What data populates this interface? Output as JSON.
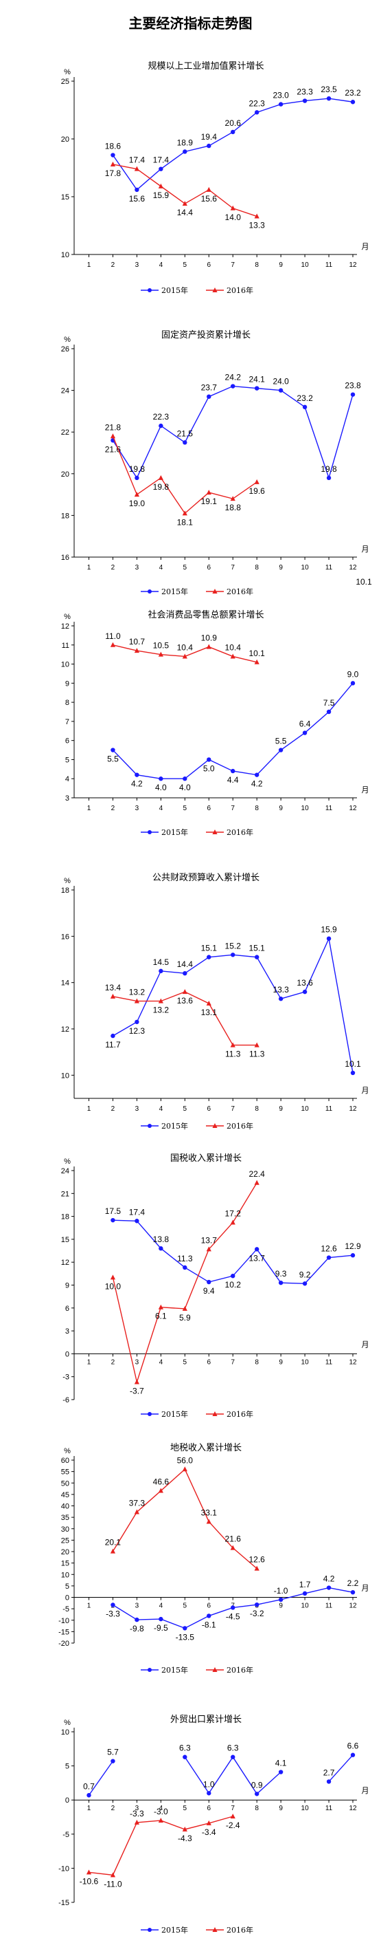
{
  "page": {
    "title": "主要经济指标走势图"
  },
  "legend": {
    "s2015": "2015年",
    "s2016": "2016年"
  },
  "chart_data": [
    {
      "type": "line",
      "title": "规模以上工业增加值累计增长",
      "yunit": "%",
      "xunit": "月",
      "ylim": [
        10,
        25
      ],
      "yticks": [
        10,
        15,
        20,
        25
      ],
      "x": [
        1,
        2,
        3,
        4,
        5,
        6,
        7,
        8,
        9,
        10,
        11,
        12
      ],
      "series": [
        {
          "name": "2015年",
          "color": "#1a1aff",
          "marker": "circle",
          "x": [
            2,
            3,
            4,
            5,
            6,
            7,
            8,
            9,
            10,
            11,
            12
          ],
          "values": [
            18.6,
            15.6,
            17.4,
            18.9,
            19.4,
            20.6,
            22.3,
            23.0,
            23.3,
            23.5,
            23.2
          ]
        },
        {
          "name": "2016年",
          "color": "#e8211f",
          "marker": "triangle",
          "x": [
            2,
            3,
            4,
            5,
            6,
            7,
            8
          ],
          "values": [
            17.8,
            17.4,
            15.9,
            14.4,
            15.6,
            14.0,
            13.3
          ]
        }
      ]
    },
    {
      "type": "line",
      "title": "固定资产投资累计增长",
      "yunit": "%",
      "xunit": "月",
      "ylim": [
        16,
        26
      ],
      "yticks": [
        16,
        18,
        20,
        22,
        24,
        26
      ],
      "x": [
        1,
        2,
        3,
        4,
        5,
        6,
        7,
        8,
        9,
        10,
        11,
        12
      ],
      "series": [
        {
          "name": "2015年",
          "color": "#1a1aff",
          "marker": "circle",
          "x": [
            2,
            3,
            4,
            5,
            6,
            7,
            8,
            9,
            10,
            11,
            12
          ],
          "values": [
            21.6,
            19.8,
            22.3,
            21.5,
            23.7,
            24.2,
            24.1,
            24.0,
            23.2,
            19.8,
            23.8
          ]
        },
        {
          "name": "2016年",
          "color": "#e8211f",
          "marker": "triangle",
          "x": [
            2,
            3,
            4,
            5,
            6,
            7,
            8
          ],
          "values": [
            21.8,
            19.0,
            19.8,
            18.1,
            19.1,
            18.8,
            19.6
          ]
        }
      ],
      "extra_labels": [
        {
          "text": "10.1",
          "at_x": 12,
          "below_axis": true
        }
      ]
    },
    {
      "type": "line",
      "title": "社会消费品零售总额累计增长",
      "yunit": "%",
      "xunit": "月",
      "ylim": [
        3,
        12
      ],
      "yticks": [
        3,
        4,
        5,
        6,
        7,
        8,
        9,
        10,
        11,
        12
      ],
      "x": [
        1,
        2,
        3,
        4,
        5,
        6,
        7,
        8,
        9,
        10,
        11,
        12
      ],
      "series": [
        {
          "name": "2015年",
          "color": "#1a1aff",
          "marker": "circle",
          "x": [
            2,
            3,
            4,
            5,
            6,
            7,
            8,
            9,
            10,
            11,
            12
          ],
          "values": [
            5.5,
            4.2,
            4.0,
            4.0,
            5.0,
            4.4,
            4.2,
            5.5,
            6.4,
            7.5,
            9.0
          ]
        },
        {
          "name": "2016年",
          "color": "#e8211f",
          "marker": "triangle",
          "x": [
            2,
            3,
            4,
            5,
            6,
            7,
            8
          ],
          "values": [
            11.0,
            10.7,
            10.5,
            10.4,
            10.9,
            10.4,
            10.1
          ]
        }
      ]
    },
    {
      "type": "line",
      "title": "公共财政预算收入累计增长",
      "yunit": "%",
      "xunit": "月",
      "ylim": [
        9,
        18
      ],
      "yticks": [
        10,
        12,
        14,
        16,
        18
      ],
      "x": [
        1,
        2,
        3,
        4,
        5,
        6,
        7,
        8,
        9,
        10,
        11,
        12
      ],
      "series": [
        {
          "name": "2015年",
          "color": "#1a1aff",
          "marker": "circle",
          "x": [
            2,
            3,
            4,
            5,
            6,
            7,
            8,
            9,
            10,
            11,
            12
          ],
          "values": [
            11.7,
            12.3,
            14.5,
            14.4,
            15.1,
            15.2,
            15.1,
            13.3,
            13.6,
            15.9,
            10.1
          ]
        },
        {
          "name": "2016年",
          "color": "#e8211f",
          "marker": "triangle",
          "x": [
            2,
            3,
            4,
            5,
            6,
            7,
            8
          ],
          "values": [
            13.4,
            13.2,
            13.2,
            13.6,
            13.1,
            11.3,
            11.3
          ]
        }
      ]
    },
    {
      "type": "line",
      "title": "国税收入累计增长",
      "yunit": "%",
      "xunit": "月",
      "ylim": [
        -6,
        24
      ],
      "yticks": [
        -6,
        -3,
        0,
        3,
        6,
        9,
        12,
        15,
        18,
        21,
        24
      ],
      "x": [
        1,
        2,
        3,
        4,
        5,
        6,
        7,
        8,
        9,
        10,
        11,
        12
      ],
      "series": [
        {
          "name": "2015年",
          "color": "#1a1aff",
          "marker": "circle",
          "x": [
            2,
            3,
            4,
            5,
            6,
            7,
            8,
            9,
            10,
            11,
            12
          ],
          "values": [
            17.5,
            17.4,
            13.8,
            11.3,
            9.4,
            10.2,
            13.7,
            9.3,
            9.2,
            12.6,
            12.9
          ]
        },
        {
          "name": "2016年",
          "color": "#e8211f",
          "marker": "triangle",
          "x": [
            2,
            3,
            4,
            5,
            6,
            7,
            8
          ],
          "values": [
            10.0,
            -3.7,
            6.1,
            5.9,
            13.7,
            17.2,
            22.4
          ]
        }
      ]
    },
    {
      "type": "line",
      "title": "地税收入累计增长",
      "yunit": "%",
      "xunit": "月",
      "ylim": [
        -20,
        60
      ],
      "yticks": [
        -20,
        -15,
        -10,
        -5,
        0,
        5,
        10,
        15,
        20,
        25,
        30,
        35,
        40,
        45,
        50,
        55,
        60
      ],
      "x": [
        1,
        2,
        3,
        4,
        5,
        6,
        7,
        8,
        9,
        10,
        11,
        12
      ],
      "series": [
        {
          "name": "2015年",
          "color": "#1a1aff",
          "marker": "circle",
          "x": [
            2,
            3,
            4,
            5,
            6,
            7,
            8,
            9,
            10,
            11,
            12
          ],
          "values": [
            -3.3,
            -9.8,
            -9.5,
            -13.5,
            -8.1,
            -4.5,
            -3.2,
            -1.0,
            1.7,
            4.2,
            2.2
          ]
        },
        {
          "name": "2016年",
          "color": "#e8211f",
          "marker": "triangle",
          "x": [
            2,
            3,
            4,
            5,
            6,
            7,
            8
          ],
          "values": [
            20.1,
            37.3,
            46.6,
            56.0,
            33.1,
            21.6,
            12.6
          ]
        }
      ]
    },
    {
      "type": "line",
      "title": "外贸出口累计增长",
      "yunit": "%",
      "xunit": "月",
      "ylim": [
        -15,
        10
      ],
      "yticks": [
        -15,
        -10,
        -5,
        0,
        5,
        10
      ],
      "x": [
        1,
        2,
        3,
        4,
        5,
        6,
        7,
        8,
        9,
        10,
        11,
        12
      ],
      "series": [
        {
          "name": "2015年",
          "color": "#1a1aff",
          "marker": "circle",
          "segments": [
            {
              "x": [
                1,
                2
              ],
              "values": [
                0.7,
                5.7
              ]
            },
            {
              "x": [
                5,
                6,
                7,
                8,
                9
              ],
              "values": [
                6.3,
                1.0,
                6.3,
                0.9,
                4.1
              ]
            },
            {
              "x": [
                11,
                12
              ],
              "values": [
                2.7,
                6.6
              ]
            }
          ]
        },
        {
          "name": "2016年",
          "color": "#e8211f",
          "marker": "triangle",
          "x": [
            1,
            2,
            3,
            4,
            5,
            6,
            7
          ],
          "values": [
            -10.6,
            -11.0,
            -3.3,
            -3.0,
            -4.3,
            -3.4,
            -2.4
          ]
        }
      ]
    }
  ]
}
